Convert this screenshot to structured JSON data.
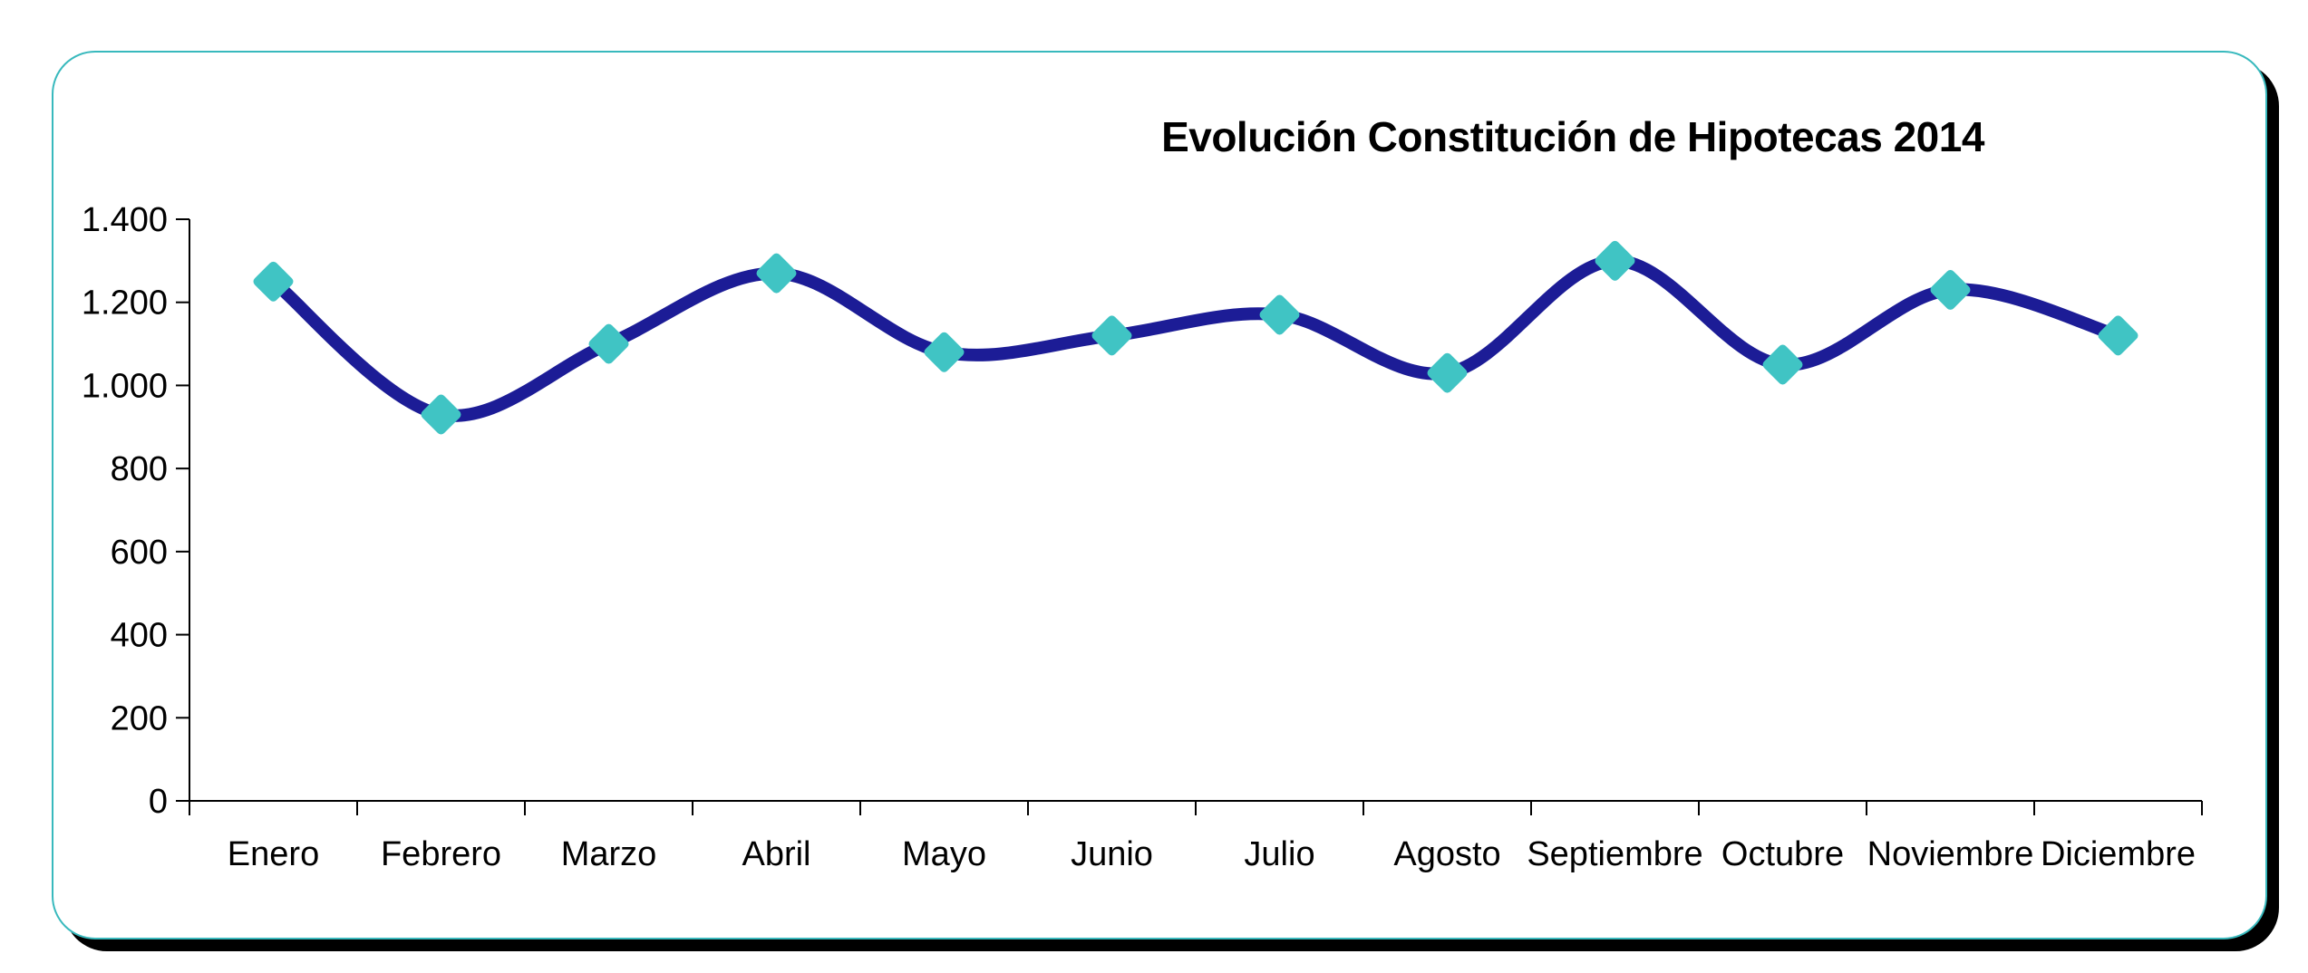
{
  "page": {
    "background": "#ffffff",
    "card_border_color": "#38b9bd",
    "card_shadow_color": "#000000"
  },
  "chart_data": {
    "type": "line",
    "title": "Evolución Constitución de Hipotecas 2014",
    "categories": [
      "Enero",
      "Febrero",
      "Marzo",
      "Abril",
      "Mayo",
      "Junio",
      "Julio",
      "Agosto",
      "Septiembre",
      "Octubre",
      "Noviembre",
      "Diciembre"
    ],
    "values": [
      1250,
      930,
      1100,
      1270,
      1080,
      1120,
      1170,
      1030,
      1300,
      1050,
      1230,
      1120
    ],
    "xlabel": "",
    "ylabel": "",
    "ylim": [
      0,
      1400
    ],
    "ytick_step": 200,
    "ytick_labels": [
      "0",
      "200",
      "400",
      "600",
      "800",
      "1.000",
      "1.200",
      "1.400"
    ],
    "grid": false,
    "legend": false,
    "smooth": true,
    "line_color": "#1c1c96",
    "marker_shape": "diamond",
    "marker_color": "#40c4c4",
    "axis_color": "#000000"
  }
}
